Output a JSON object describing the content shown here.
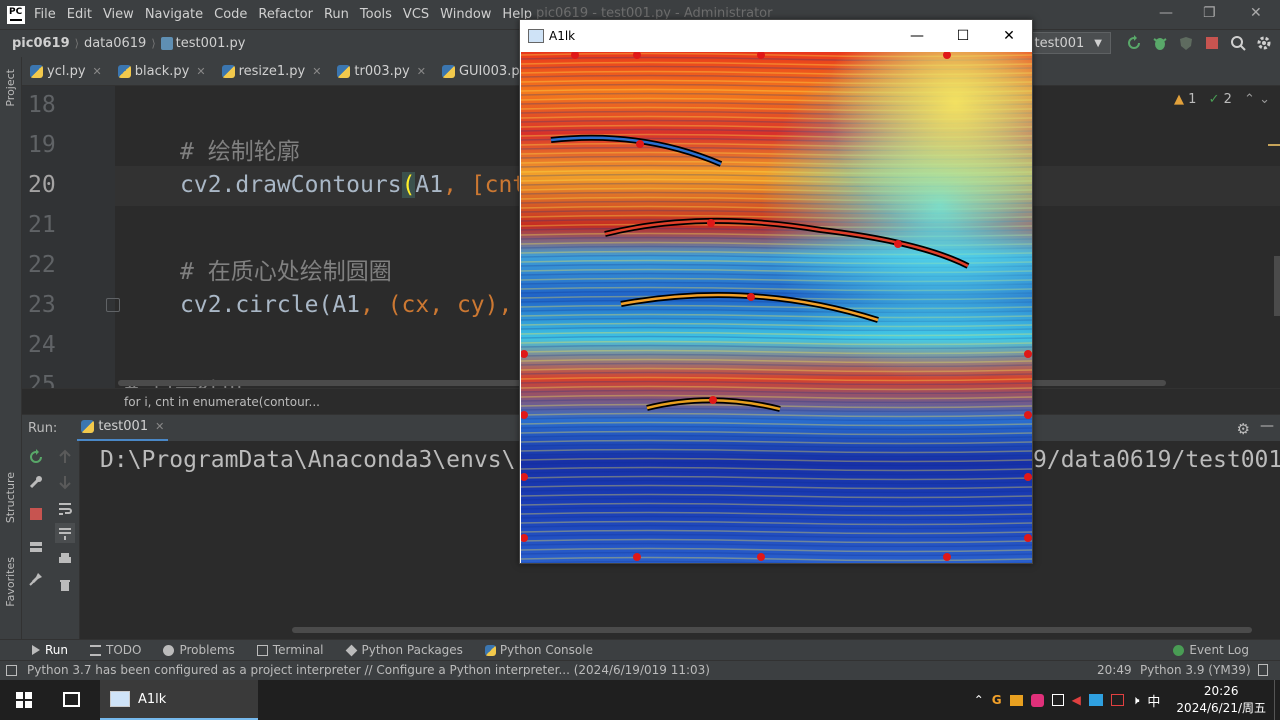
{
  "menubar": {
    "items": [
      "File",
      "Edit",
      "View",
      "Navigate",
      "Code",
      "Refactor",
      "Run",
      "Tools",
      "VCS",
      "Window",
      "Help"
    ],
    "window_title": "pic0619 - test001.py - Administrator"
  },
  "navbar": {
    "project": "pic0619",
    "folder": "data0619",
    "file": "test001.py",
    "run_config": "test001"
  },
  "left_strip": {
    "project_label": "Project",
    "structure_label": "Structure",
    "favorites_label": "Favorites"
  },
  "tabs": [
    "ycl.py",
    "black.py",
    "resize1.py",
    "tr003.py",
    "GUI003.py"
  ],
  "editor": {
    "inspection": {
      "warnings": "1",
      "weak": "2"
    },
    "lines": [
      {
        "no": "18",
        "code": ""
      },
      {
        "no": "19",
        "comment": "# 绘制轮廓"
      },
      {
        "no": "20",
        "a": "cv2.drawContours",
        "b": "(",
        "c": "A1",
        "d": ", [cnt"
      },
      {
        "no": "21",
        "code": ""
      },
      {
        "no": "22",
        "comment": "# 在质心处绘制圆圈"
      },
      {
        "no": "23",
        "a": "cv2.circle(A1",
        "d": ", (cx",
        "e": ", cy)",
        "f": ","
      },
      {
        "no": "24",
        "code": ""
      },
      {
        "no": "25",
        "comment": "# 显示结果"
      }
    ],
    "breadcrumb": "for i, cnt in enumerate(contour..."
  },
  "run_panel": {
    "label": "Run:",
    "tab": "test001",
    "console_left": "D:\\ProgramData\\Anaconda3\\envs\\",
    "console_right": "9/data0619/test001"
  },
  "bottom_tabs": [
    "Run",
    "TODO",
    "Problems",
    "Terminal",
    "Python Packages",
    "Python Console"
  ],
  "event_log": "Event Log",
  "status": {
    "message": "Python 3.7 has been configured as a project interpreter // Configure a Python interpreter... (2024/6/19/019 11:03)",
    "position": "20:49",
    "interpreter": "Python 3.9 (YM39)"
  },
  "cv_window": {
    "title": "A1lk"
  },
  "taskbar": {
    "app": "A1lk",
    "time": "20:26",
    "date": "2024/6/21/周五",
    "ime": "中"
  }
}
